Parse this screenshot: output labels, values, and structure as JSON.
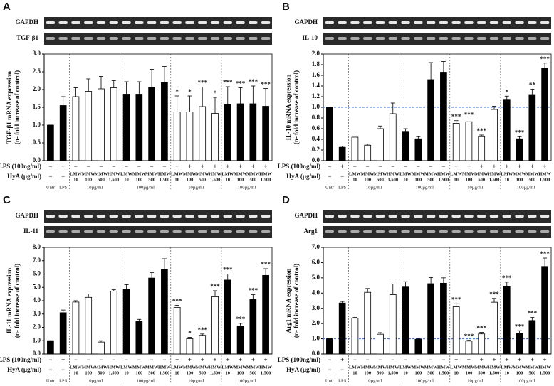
{
  "chart_data": [
    {
      "type": "bar",
      "panel": "A",
      "gel_labels": [
        "GAPDH",
        "TGF-β1"
      ],
      "y_label": [
        "TGF-β1 mRNA expression",
        "(n- fold increase of control)"
      ],
      "categories": [
        "Untr",
        "LPS",
        "",
        "",
        "",
        "",
        "",
        "",
        "",
        "",
        "",
        "",
        "",
        "",
        "",
        "",
        "",
        ""
      ],
      "values": [
        1.0,
        1.55,
        1.8,
        1.95,
        2.02,
        2.05,
        1.87,
        1.87,
        2.07,
        2.2,
        1.37,
        1.37,
        1.52,
        1.33,
        1.58,
        1.6,
        1.6,
        1.53
      ],
      "errors": [
        0,
        0.25,
        0.25,
        0.35,
        0.35,
        0.2,
        0.35,
        0.35,
        0.5,
        0.45,
        0.45,
        0.45,
        0.55,
        0.45,
        0.5,
        0.45,
        0.5,
        0.5
      ],
      "colors": [
        "#000",
        "#000",
        "#fff",
        "#fff",
        "#fff",
        "#fff",
        "#000",
        "#000",
        "#000",
        "#000",
        "#fff",
        "#fff",
        "#fff",
        "#fff",
        "#000",
        "#000",
        "#000",
        "#000"
      ],
      "significance": [
        null,
        null,
        null,
        null,
        null,
        null,
        null,
        null,
        null,
        null,
        "*",
        "*",
        "***",
        "*",
        "***",
        "***",
        "***",
        "***"
      ],
      "ylim": [
        0,
        3.0
      ],
      "yticks": [
        {
          "value": 0,
          "label": "0.0"
        },
        0.5,
        {
          "value": 1,
          "label": "1.0"
        },
        1.5,
        {
          "value": 2,
          "label": "2.0"
        },
        2.5,
        {
          "value": 3,
          "label": "3.0"
        }
      ],
      "row_labels": [
        "LPS (100ng/ml)",
        "HyA (µg/ml)"
      ],
      "lps": [
        "−",
        "+",
        "−",
        "−",
        "−",
        "−",
        "−",
        "−",
        "−",
        "−",
        "+",
        "+",
        "+",
        "+",
        "+",
        "+",
        "+",
        "+"
      ],
      "hya": [
        [
          "−"
        ],
        [
          "−"
        ],
        [
          "LMW",
          "10"
        ],
        [
          "MMW",
          "100"
        ],
        [
          "MMW",
          "500"
        ],
        [
          "HMW",
          "1,500"
        ],
        [
          "LMW",
          "10"
        ],
        [
          "MMW",
          "100"
        ],
        [
          "MMW",
          "500"
        ],
        [
          "HMW",
          "1,500"
        ],
        [
          "LMW",
          "10"
        ],
        [
          "MMW",
          "100"
        ],
        [
          "MMW",
          "500"
        ],
        [
          "HMW",
          "1,500"
        ],
        [
          "LMW",
          "10"
        ],
        [
          "MMW",
          "100"
        ],
        [
          "MMW",
          "500"
        ],
        [
          "HMW",
          "1,500"
        ]
      ],
      "group_labels": [
        "Untr",
        "LPS",
        "10µg/ml",
        "100µg/ml",
        "10µg/ml",
        "100µg/ml"
      ]
    },
    {
      "type": "bar",
      "panel": "B",
      "gel_labels": [
        "GAPDH",
        "IL-10"
      ],
      "y_label": [
        "IL-10 mRNA expression",
        "(n- fold increase of control)"
      ],
      "categories": [
        "Untr",
        "LPS",
        "",
        "",
        "",
        "",
        "",
        "",
        "",
        "",
        "",
        "",
        "",
        "",
        "",
        "",
        "",
        ""
      ],
      "values": [
        1.0,
        0.25,
        0.44,
        0.29,
        0.6,
        0.88,
        0.55,
        0.41,
        1.52,
        1.66,
        0.7,
        0.73,
        0.45,
        0.96,
        1.15,
        0.41,
        1.24,
        1.73
      ],
      "errors": [
        0,
        0.02,
        0.02,
        0.02,
        0.05,
        0.2,
        0.05,
        0.04,
        0.32,
        0.2,
        0.05,
        0.05,
        0.03,
        0.06,
        0.06,
        0.04,
        0.1,
        0.1
      ],
      "colors": [
        "#000",
        "#000",
        "#fff",
        "#fff",
        "#fff",
        "#fff",
        "#000",
        "#000",
        "#000",
        "#000",
        "#fff",
        "#fff",
        "#fff",
        "#fff",
        "#000",
        "#000",
        "#000",
        "#000"
      ],
      "significance": [
        null,
        null,
        null,
        null,
        null,
        null,
        null,
        null,
        null,
        null,
        "***",
        "***",
        "***",
        null,
        "*",
        "***",
        "**",
        "***"
      ],
      "ylim": [
        0,
        2.0
      ],
      "yticks": [
        {
          "value": 0,
          "label": "0.0"
        },
        0.2,
        0.4,
        0.6,
        0.8,
        {
          "value": 1,
          "label": "1.0"
        },
        1.2,
        1.4,
        1.6,
        1.8,
        {
          "value": 2,
          "label": "2.0"
        }
      ],
      "reference_line": 1.0,
      "row_labels": [
        "LPS (100ng/ml)",
        "HyA (µg/ml)"
      ],
      "lps": [
        "−",
        "+",
        "−",
        "−",
        "−",
        "−",
        "−",
        "−",
        "−",
        "−",
        "+",
        "+",
        "+",
        "+",
        "+",
        "+",
        "+",
        "+"
      ],
      "hya": [
        [
          "−"
        ],
        [
          "−"
        ],
        [
          "LMW",
          "10"
        ],
        [
          "MMW",
          "100"
        ],
        [
          "MMW",
          "500"
        ],
        [
          "HMW",
          "1,500"
        ],
        [
          "LMW",
          "10"
        ],
        [
          "MMW",
          "100"
        ],
        [
          "MMW",
          "500"
        ],
        [
          "HMW",
          "1,500"
        ],
        [
          "LMW",
          "10"
        ],
        [
          "MMW",
          "100"
        ],
        [
          "MMW",
          "500"
        ],
        [
          "HMW",
          "1,500"
        ],
        [
          "LMW",
          "10"
        ],
        [
          "MMW",
          "100"
        ],
        [
          "MMW",
          "500"
        ],
        [
          "HMW",
          "1,500"
        ]
      ],
      "group_labels": [
        "Untr",
        "LPS",
        "10µg/ml",
        "100µg/ml",
        "10µg/ml",
        "100µg/ml"
      ]
    },
    {
      "type": "bar",
      "panel": "C",
      "gel_labels": [
        "GAPDH",
        "IL-11"
      ],
      "y_label": [
        "IL-11 mRNA expression",
        "(n- fold increase of control)"
      ],
      "categories": [
        "Untr",
        "LPS",
        "",
        "",
        "",
        "",
        "",
        "",
        "",
        "",
        "",
        "",
        "",
        "",
        "",
        "",
        "",
        ""
      ],
      "values": [
        1.0,
        3.1,
        3.9,
        4.25,
        0.9,
        4.72,
        4.85,
        2.45,
        5.7,
        6.35,
        3.5,
        1.15,
        1.4,
        4.3,
        5.55,
        2.1,
        4.1,
        5.9
      ],
      "errors": [
        0,
        0.2,
        0.1,
        0.25,
        0.1,
        0.1,
        0.35,
        0.15,
        0.4,
        0.8,
        0.15,
        0.1,
        0.1,
        0.45,
        0.45,
        0.2,
        0.35,
        0.5
      ],
      "colors": [
        "#000",
        "#000",
        "#fff",
        "#fff",
        "#fff",
        "#fff",
        "#000",
        "#000",
        "#000",
        "#000",
        "#fff",
        "#fff",
        "#fff",
        "#fff",
        "#000",
        "#000",
        "#000",
        "#000"
      ],
      "significance": [
        null,
        null,
        null,
        null,
        null,
        null,
        null,
        null,
        null,
        null,
        "***",
        "*",
        "***",
        "***",
        "***",
        "***",
        "***",
        "***"
      ],
      "ylim": [
        0,
        8.0
      ],
      "yticks": [
        {
          "value": 0,
          "label": "0.0"
        },
        {
          "value": 1,
          "label": "1.0"
        },
        {
          "value": 2,
          "label": "2.0"
        },
        {
          "value": 3,
          "label": "3.0"
        },
        {
          "value": 4,
          "label": "4.0"
        },
        {
          "value": 5,
          "label": "5.0"
        },
        {
          "value": 6,
          "label": "6.0"
        },
        {
          "value": 7,
          "label": "7.0"
        },
        {
          "value": 8,
          "label": "8.0"
        }
      ],
      "row_labels": [
        "LPS (100ng/ml)",
        "HyA (µg/ml)"
      ],
      "lps": [
        "−",
        "+",
        "−",
        "−",
        "−",
        "−",
        "−",
        "−",
        "−",
        "−",
        "+",
        "+",
        "+",
        "+",
        "+",
        "+",
        "+",
        "+"
      ],
      "hya": [
        [
          "−"
        ],
        [
          "−"
        ],
        [
          "LMW",
          "10"
        ],
        [
          "MMW",
          "100"
        ],
        [
          "MMW",
          "500"
        ],
        [
          "HMW",
          "1,500"
        ],
        [
          "LMW",
          "10"
        ],
        [
          "MMW",
          "100"
        ],
        [
          "MMW",
          "500"
        ],
        [
          "HMW",
          "1,500"
        ],
        [
          "LMW",
          "10"
        ],
        [
          "MMW",
          "100"
        ],
        [
          "MMW",
          "500"
        ],
        [
          "HMW",
          "1,500"
        ],
        [
          "LMW",
          "10"
        ],
        [
          "MMW",
          "100"
        ],
        [
          "MMW",
          "500"
        ],
        [
          "HMW",
          "1,500"
        ]
      ],
      "group_labels": [
        "Untr",
        "LPS",
        "10µg/ml",
        "100µg/ml",
        "10µg/ml",
        "100µg/ml"
      ]
    },
    {
      "type": "bar",
      "panel": "D",
      "gel_labels": [
        "GAPDH",
        "Arg1"
      ],
      "y_label": [
        "Arg1 mRNA expression",
        "(n- fold increase of control)"
      ],
      "categories": [
        "Untr",
        "LPS",
        "",
        "",
        "",
        "",
        "",
        "",
        "",
        "",
        "",
        "",
        "",
        "",
        "",
        "",
        "",
        ""
      ],
      "values": [
        1.0,
        3.35,
        2.35,
        4.05,
        1.3,
        3.9,
        4.4,
        0.97,
        4.62,
        4.65,
        3.1,
        0.85,
        1.32,
        3.4,
        4.42,
        1.38,
        2.2,
        5.75
      ],
      "errors": [
        0,
        0.1,
        0.05,
        0.25,
        0.1,
        0.7,
        0.35,
        0.05,
        0.4,
        0.35,
        0.2,
        0.05,
        0.1,
        0.25,
        0.3,
        0.15,
        0.2,
        0.55
      ],
      "colors": [
        "#000",
        "#000",
        "#fff",
        "#fff",
        "#fff",
        "#fff",
        "#000",
        "#000",
        "#000",
        "#000",
        "#fff",
        "#fff",
        "#fff",
        "#fff",
        "#000",
        "#000",
        "#000",
        "#000"
      ],
      "significance": [
        null,
        null,
        null,
        null,
        null,
        null,
        null,
        null,
        null,
        null,
        "***",
        "***",
        "***",
        "***",
        "***",
        "***",
        "***",
        "***"
      ],
      "ylim": [
        0,
        7.0
      ],
      "yticks": [
        {
          "value": 0,
          "label": "0.0"
        },
        {
          "value": 1,
          "label": "1.0"
        },
        {
          "value": 2,
          "label": "2.0"
        },
        {
          "value": 3,
          "label": "3.0"
        },
        {
          "value": 4,
          "label": "4.0"
        },
        {
          "value": 5,
          "label": "5.0"
        },
        {
          "value": 6,
          "label": "6.0"
        },
        {
          "value": 7,
          "label": "7.0"
        }
      ],
      "reference_line": 1.0,
      "row_labels": [
        "LPS (100ng/ml)",
        "HyA (µg/ml)"
      ],
      "lps": [
        "−",
        "+",
        "−",
        "−",
        "−",
        "−",
        "−",
        "−",
        "−",
        "−",
        "+",
        "+",
        "+",
        "+",
        "+",
        "+",
        "+",
        "+"
      ],
      "hya": [
        [
          "−"
        ],
        [
          "−"
        ],
        [
          "LMW",
          "10"
        ],
        [
          "MMW",
          "100"
        ],
        [
          "MMW",
          "500"
        ],
        [
          "HMW",
          "1,500"
        ],
        [
          "LMW",
          "10"
        ],
        [
          "MMW",
          "100"
        ],
        [
          "MMW",
          "500"
        ],
        [
          "HMW",
          "1,500"
        ],
        [
          "LMW",
          "10"
        ],
        [
          "MMW",
          "100"
        ],
        [
          "MMW",
          "500"
        ],
        [
          "HMW",
          "1,500"
        ],
        [
          "LMW",
          "10"
        ],
        [
          "MMW",
          "100"
        ],
        [
          "MMW",
          "500"
        ],
        [
          "HMW",
          "1,500"
        ]
      ],
      "group_labels": [
        "Untr",
        "LPS",
        "10µg/ml",
        "100µg/ml",
        "10µg/ml",
        "100µg/ml"
      ]
    }
  ]
}
